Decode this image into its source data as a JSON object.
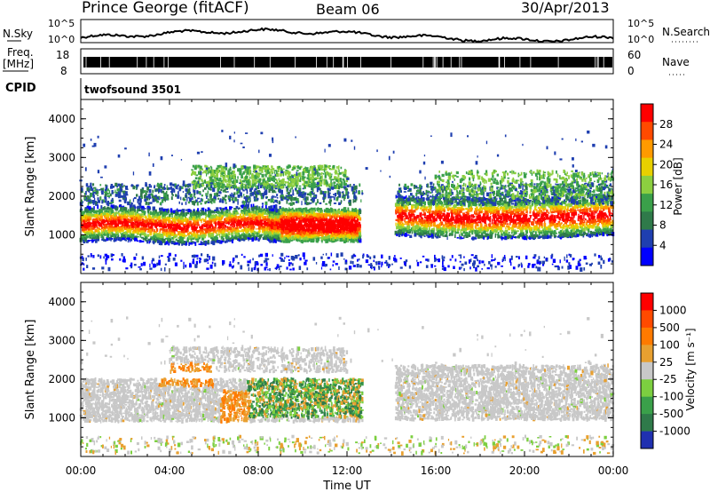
{
  "header": {
    "station": "Prince George (fitACF)",
    "beam": "Beam 06",
    "date": "30/Apr/2013"
  },
  "sky_panel": {
    "left_label": "N.Sky",
    "left_ticks": [
      "10^5",
      "10^0"
    ],
    "right_label": "N.Search",
    "right_ticks": [
      "10^5",
      "10^0"
    ]
  },
  "freq_panel": {
    "left_label": "Freq.",
    "left_unit": "[MHz]",
    "left_ticks": [
      "18",
      "8"
    ],
    "right_label": "Nave",
    "right_ticks": [
      "60",
      "0"
    ]
  },
  "cpid": {
    "label": "CPID",
    "value": "twofsound 3501"
  },
  "chart_data": [
    {
      "type": "heatmap",
      "name": "power",
      "ylabel": "Slant Range [km]",
      "yticks": [
        "1000",
        "2000",
        "3000",
        "4000"
      ],
      "ylim": [
        0,
        4500
      ],
      "xlim": [
        0,
        24
      ],
      "colorbar_label": "Power [dB]",
      "colorbar_ticks": [
        "28",
        "24",
        "20",
        "16",
        "12",
        "8",
        "4"
      ],
      "colors": [
        "#0000ff",
        "#1f3fb0",
        "#2f7a4a",
        "#3aa04a",
        "#8ccf40",
        "#e8d000",
        "#ff9a00",
        "#ff4a00",
        "#ff0000"
      ]
    },
    {
      "type": "heatmap",
      "name": "velocity",
      "ylabel": "Slant Range [km]",
      "yticks": [
        "1000",
        "2000",
        "3000",
        "4000"
      ],
      "ylim": [
        0,
        4500
      ],
      "xlim": [
        0,
        24
      ],
      "colorbar_label": "Velocity [m s⁻¹]",
      "colorbar_ticks": [
        "1000",
        "500",
        "100",
        "25",
        "-25",
        "-100",
        "-500",
        "-1000"
      ],
      "colors": [
        "#2030b0",
        "#2f7a4a",
        "#3aa04a",
        "#7ccf40",
        "#c8c8c8",
        "#e8a030",
        "#ff7a00",
        "#ff4a00",
        "#ff0000"
      ]
    }
  ],
  "x_axis": {
    "ticks": [
      "00:00",
      "04:00",
      "08:00",
      "12:00",
      "16:00",
      "20:00",
      "00:00"
    ],
    "label": "Time UT"
  }
}
